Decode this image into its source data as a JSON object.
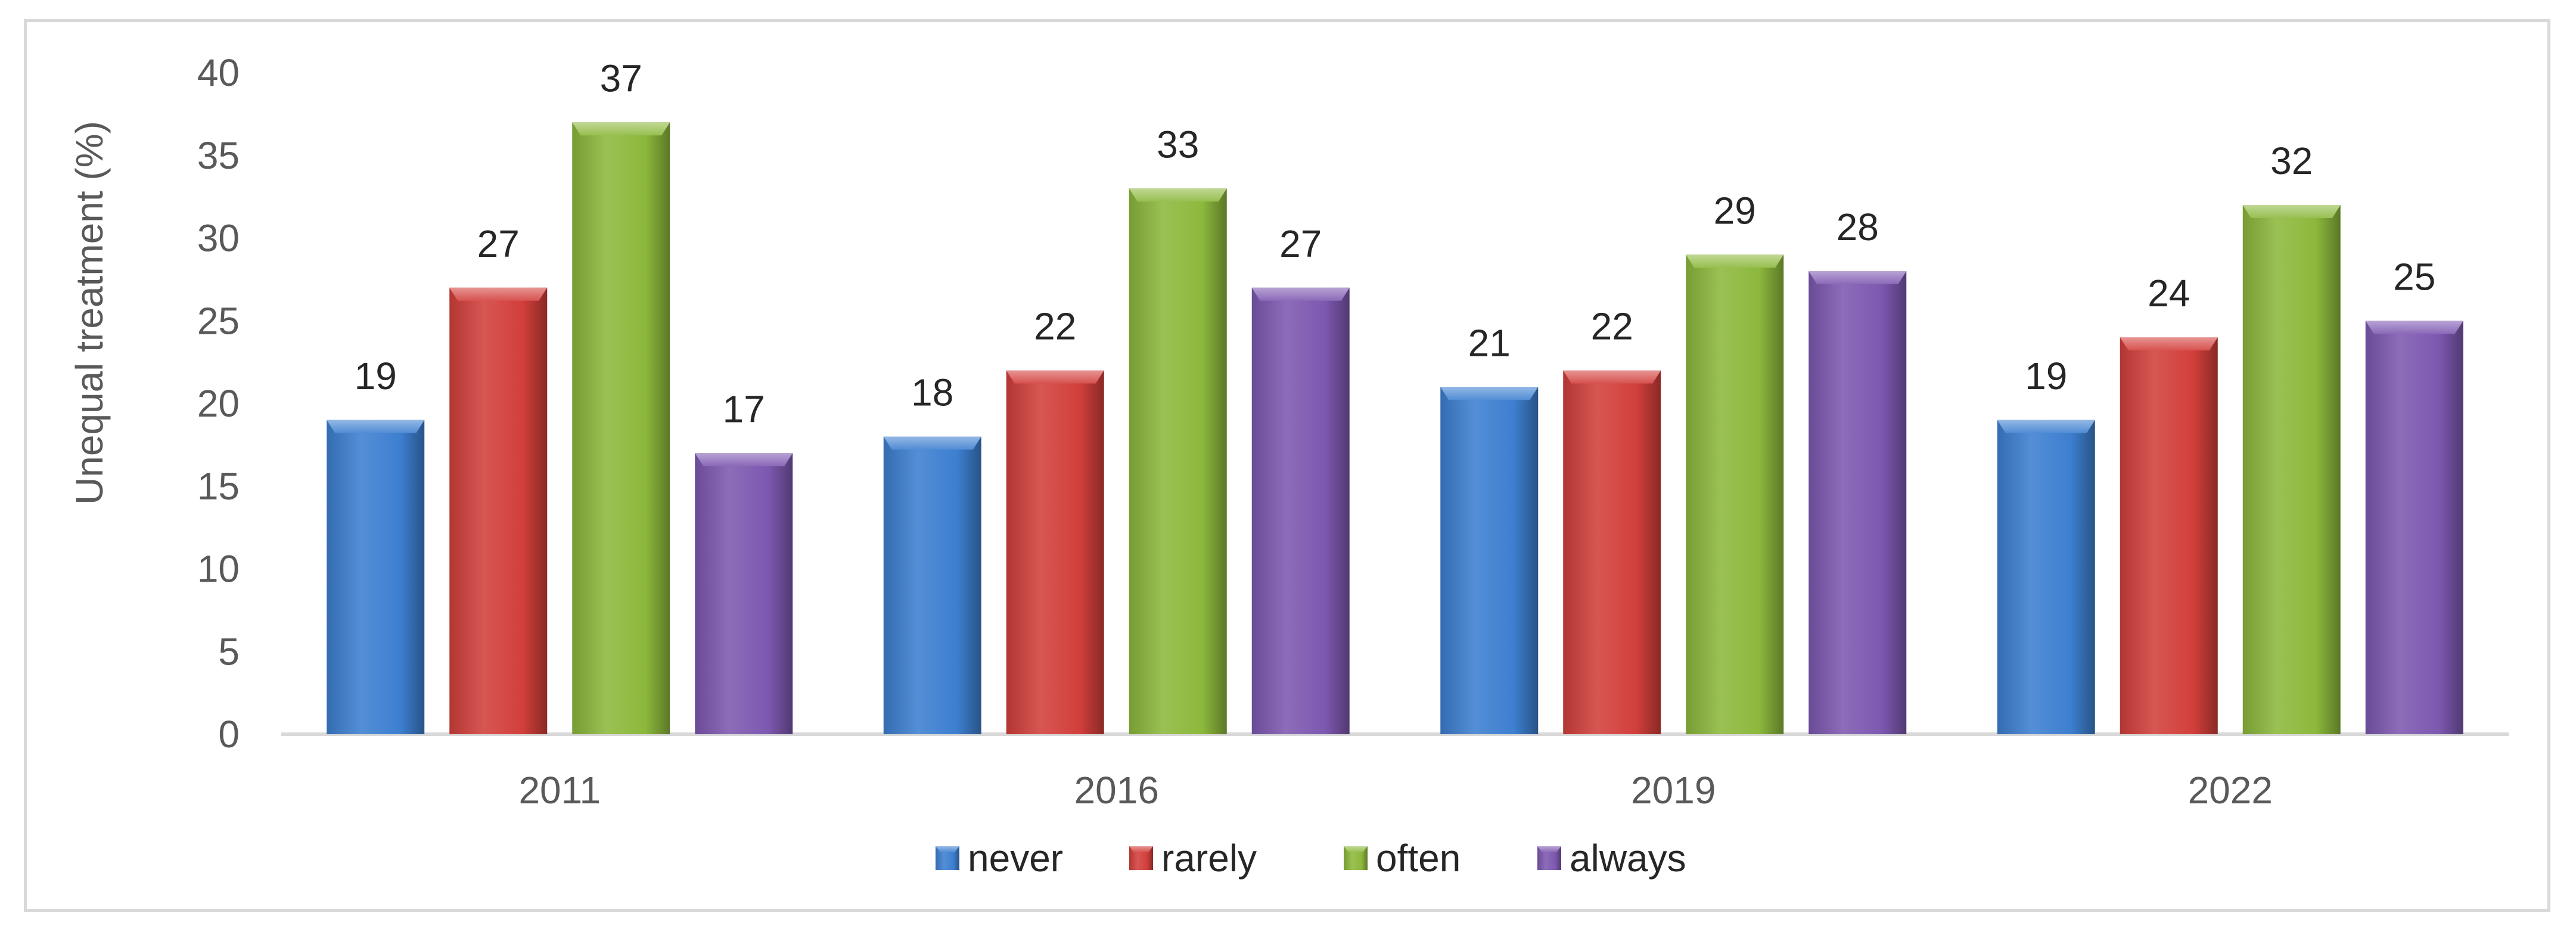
{
  "chart_data": {
    "type": "bar",
    "title": "",
    "xlabel": "",
    "ylabel": "Unequal treatment (%)",
    "ylim": [
      0,
      40
    ],
    "yticks": [
      0,
      5,
      10,
      15,
      20,
      25,
      30,
      35,
      40
    ],
    "categories": [
      "2011",
      "2016",
      "2019",
      "2022"
    ],
    "series": [
      {
        "name": "never",
        "color": "#3d7fd0",
        "values": [
          19,
          18,
          21,
          19
        ]
      },
      {
        "name": "rarely",
        "color": "#d23f3b",
        "values": [
          27,
          22,
          22,
          24
        ]
      },
      {
        "name": "often",
        "color": "#8cb83c",
        "values": [
          37,
          33,
          29,
          32
        ]
      },
      {
        "name": "always",
        "color": "#7d58b0",
        "values": [
          17,
          27,
          28,
          25
        ]
      }
    ],
    "grid": false,
    "data_labels": true,
    "legend_position": "bottom"
  }
}
